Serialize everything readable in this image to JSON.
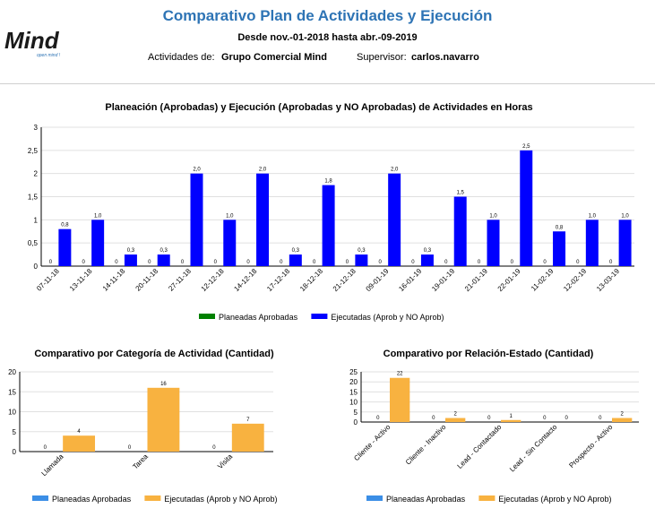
{
  "header": {
    "title": "Comparativo Plan de Actividades y Ejecución",
    "date_range": "Desde nov.-01-2018 hasta abr.-09-2019",
    "activities_label": "Actividades de:",
    "activities_value": "Grupo Comercial Mind",
    "supervisor_label": "Supervisor:",
    "supervisor_value": "carlos.navarro",
    "logo_text": "Mind",
    "logo_tagline": "open mind !"
  },
  "colors": {
    "title": "#2e74b5",
    "planned_main": "#008000",
    "executed_main": "#0000ff",
    "planned_small": "#3b8ee6",
    "executed_small": "#f8b240",
    "grid": "#e0e0e0"
  },
  "chart_data": [
    {
      "type": "bar",
      "title": "Planeación (Aprobadas) y Ejecución (Aprobadas y NO Aprobadas) de Actividades en Horas",
      "categories": [
        "07-11-18",
        "13-11-18",
        "14-11-18",
        "20-11-18",
        "27-11-18",
        "12-12-18",
        "14-12-18",
        "17-12-18",
        "18-12-18",
        "21-12-18",
        "09-01-19",
        "16-01-19",
        "19-01-19",
        "21-01-19",
        "22-01-19",
        "11-02-19",
        "12-02-19",
        "13-03-19"
      ],
      "series": [
        {
          "name": "Planeadas Aprobadas",
          "values": [
            0,
            0,
            0,
            0,
            0,
            0,
            0,
            0,
            0,
            0,
            0,
            0,
            0,
            0,
            0,
            0,
            0,
            0
          ],
          "labels": [
            "0",
            "0",
            "0",
            "0",
            "0",
            "0",
            "0",
            "0",
            "0",
            "0",
            "0",
            "0",
            "0",
            "0",
            "0",
            "0",
            "0",
            "0"
          ]
        },
        {
          "name": "Ejecutadas (Aprob y NO Aprob)",
          "values": [
            0.8,
            1.0,
            0.25,
            0.25,
            2.0,
            1.0,
            2.0,
            0.25,
            1.75,
            0.25,
            2.0,
            0.25,
            1.5,
            1.0,
            2.5,
            0.75,
            1.0,
            1.0
          ],
          "labels": [
            "0,8",
            "1,0",
            "0,3",
            "0,3",
            "2,0",
            "1,0",
            "2,0",
            "0,3",
            "1,8",
            "0,3",
            "2,0",
            "0,3",
            "1,5",
            "1,0",
            "2,5",
            "0,8",
            "1,0",
            "1,0"
          ]
        }
      ],
      "ylim": [
        0,
        3
      ],
      "yticks": [
        "0",
        "0,5",
        "1",
        "1,5",
        "2",
        "2,5",
        "3"
      ],
      "legend": "bottom"
    },
    {
      "type": "bar",
      "title": "Comparativo por Categoría de Actividad (Cantidad)",
      "categories": [
        "Llamada",
        "Tarea",
        "Visita"
      ],
      "series": [
        {
          "name": "Planeadas Aprobadas",
          "values": [
            0,
            0,
            0
          ],
          "labels": [
            "0",
            "0",
            "0"
          ]
        },
        {
          "name": "Ejecutadas (Aprob y NO Aprob)",
          "values": [
            4,
            16,
            7
          ],
          "labels": [
            "4",
            "16",
            "7"
          ]
        }
      ],
      "ylim": [
        0,
        20
      ],
      "yticks": [
        "0",
        "5",
        "10",
        "15",
        "20"
      ],
      "legend": "bottom"
    },
    {
      "type": "bar",
      "title": "Comparativo por Relación-Estado (Cantidad)",
      "categories": [
        "Cliente - Activo",
        "Cliente - Inactivo",
        "Lead - Contactado",
        "Lead - Sin Contacto",
        "Prospecto - Activo"
      ],
      "series": [
        {
          "name": "Planeadas Aprobadas",
          "values": [
            0,
            0,
            0,
            0,
            0
          ],
          "labels": [
            "0",
            "0",
            "0",
            "0",
            "0"
          ]
        },
        {
          "name": "Ejecutadas (Aprob y NO Aprob)",
          "values": [
            22,
            2,
            1,
            0,
            2
          ],
          "labels": [
            "22",
            "2",
            "1",
            "0",
            "2"
          ]
        }
      ],
      "ylim": [
        0,
        25
      ],
      "yticks": [
        "0",
        "5",
        "10",
        "15",
        "20",
        "25"
      ],
      "legend": "bottom"
    }
  ]
}
